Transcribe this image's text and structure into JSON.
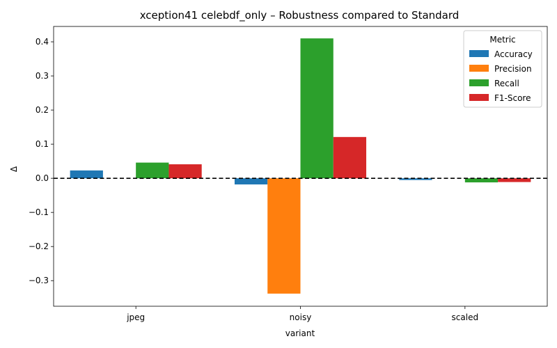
{
  "chart_data": {
    "type": "bar",
    "title": "xception41 celebdf_only – Robustness compared to Standard",
    "xlabel": "variant",
    "ylabel": "Δ",
    "categories": [
      "jpeg",
      "noisy",
      "scaled"
    ],
    "ylim": [
      -0.375,
      0.445
    ],
    "yticks": [
      -0.3,
      -0.2,
      -0.1,
      0.0,
      0.1,
      0.2,
      0.3,
      0.4
    ],
    "ytick_labels": [
      "−0.3",
      "−0.2",
      "−0.1",
      "0.0",
      "0.1",
      "0.2",
      "0.3",
      "0.4"
    ],
    "reference_line": 0.0,
    "grid": false,
    "legend": {
      "title": "Metric",
      "placement": "top-right"
    },
    "series": [
      {
        "name": "Accuracy",
        "color": "#1f77b4",
        "values": [
          0.023,
          -0.018,
          -0.005
        ]
      },
      {
        "name": "Precision",
        "color": "#ff7f0e",
        "values": [
          0.0,
          -0.338,
          0.0
        ]
      },
      {
        "name": "Recall",
        "color": "#2ca02c",
        "values": [
          0.046,
          0.41,
          -0.012
        ]
      },
      {
        "name": "F1-Score",
        "color": "#d62728",
        "values": [
          0.041,
          0.121,
          -0.011
        ]
      }
    ]
  }
}
